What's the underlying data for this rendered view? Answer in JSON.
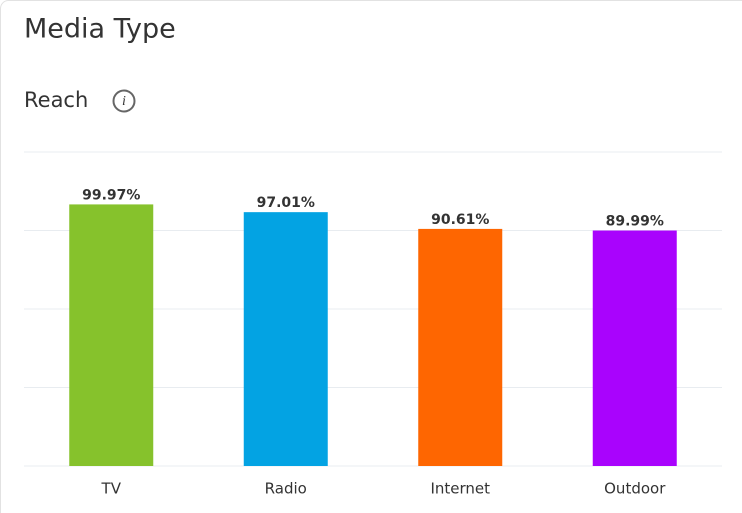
{
  "chart_data": {
    "type": "bar",
    "title": "Media Type",
    "subtitle": "Reach",
    "categories": [
      "TV",
      "Radio",
      "Internet",
      "Outdoor"
    ],
    "values": [
      99.97,
      97.01,
      90.61,
      89.99
    ],
    "value_labels": [
      "99.97%",
      "97.01%",
      "90.61%",
      "89.99%"
    ],
    "colors": [
      "#86c22c",
      "#03a3e3",
      "#fe6601",
      "#a903fd"
    ],
    "ylim": [
      0,
      120
    ],
    "yticks": [
      0,
      30,
      60,
      90,
      120
    ],
    "grid": true
  }
}
